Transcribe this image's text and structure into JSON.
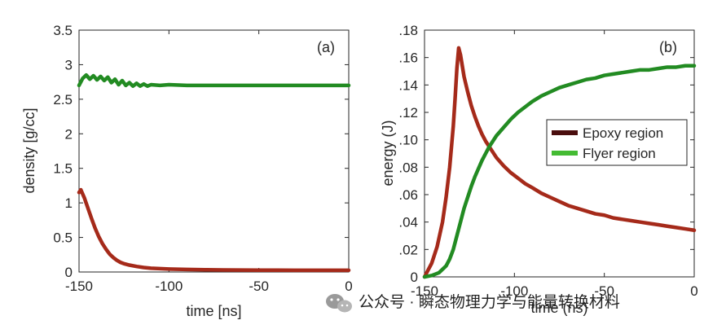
{
  "chart_data": [
    {
      "type": "line",
      "panel_label": "(a)",
      "xlabel": "time [ns]",
      "ylabel": "density [g/cc]",
      "xlim": [
        -150,
        0
      ],
      "ylim": [
        0,
        3.5
      ],
      "xticks": [
        -150,
        -100,
        -50,
        0
      ],
      "xtick_labels": [
        "-150",
        "-100",
        "-50",
        "0"
      ],
      "yticks": [
        0,
        0.5,
        1,
        1.5,
        2,
        2.5,
        3,
        3.5
      ],
      "ytick_labels": [
        "0",
        "0.5",
        "1",
        "1.5",
        "2",
        "2.5",
        "3",
        "3.5"
      ],
      "grid": false,
      "series": [
        {
          "color": "#228b22",
          "x": [
            -150,
            -148,
            -146,
            -144,
            -142,
            -140,
            -138,
            -136,
            -134,
            -132,
            -130,
            -128,
            -126,
            -124,
            -122,
            -120,
            -118,
            -116,
            -114,
            -112,
            -110,
            -105,
            -100,
            -90,
            -80,
            -70,
            -60,
            -50,
            -40,
            -30,
            -20,
            -10,
            0
          ],
          "y": [
            2.7,
            2.8,
            2.85,
            2.79,
            2.84,
            2.78,
            2.83,
            2.77,
            2.82,
            2.74,
            2.79,
            2.71,
            2.77,
            2.7,
            2.74,
            2.69,
            2.73,
            2.69,
            2.72,
            2.69,
            2.71,
            2.7,
            2.71,
            2.7,
            2.7,
            2.7,
            2.7,
            2.7,
            2.7,
            2.7,
            2.7,
            2.7,
            2.7
          ]
        },
        {
          "color": "#a52a1a",
          "x": [
            -150,
            -149,
            -147,
            -145,
            -143,
            -141,
            -139,
            -137,
            -135,
            -133,
            -131,
            -129,
            -127,
            -125,
            -122,
            -118,
            -114,
            -110,
            -105,
            -100,
            -95,
            -90,
            -80,
            -70,
            -60,
            -50,
            -40,
            -30,
            -20,
            -10,
            0
          ],
          "y": [
            1.15,
            1.19,
            1.07,
            0.92,
            0.77,
            0.63,
            0.51,
            0.41,
            0.33,
            0.26,
            0.21,
            0.17,
            0.14,
            0.12,
            0.1,
            0.08,
            0.065,
            0.055,
            0.048,
            0.043,
            0.04,
            0.037,
            0.033,
            0.03,
            0.028,
            0.027,
            0.026,
            0.025,
            0.025,
            0.025,
            0.025
          ]
        }
      ]
    },
    {
      "type": "line",
      "panel_label": "(b)",
      "xlabel": "time (ns)",
      "ylabel": "energy (J)",
      "xlim": [
        -150,
        0
      ],
      "ylim": [
        0,
        0.18
      ],
      "xticks": [
        -150,
        -100,
        -50,
        0
      ],
      "xtick_labels": [
        "-150",
        "-100",
        "-50",
        "0"
      ],
      "yticks": [
        0,
        0.02,
        0.04,
        0.06,
        0.08,
        0.1,
        0.12,
        0.14,
        0.16,
        0.18
      ],
      "ytick_labels": [
        "0",
        ".02",
        ".04",
        ".06",
        ".08",
        ".10",
        ".12",
        ".14",
        ".16",
        ".18"
      ],
      "grid": false,
      "legend": {
        "placement": "right",
        "entries": [
          {
            "label": "Epoxy region",
            "color": "#4a0e0e"
          },
          {
            "label": "Flyer region",
            "color": "#44bb33"
          }
        ]
      },
      "series": [
        {
          "name": "Epoxy region",
          "color": "#a52a1a",
          "x": [
            -150,
            -146,
            -143,
            -140,
            -138,
            -136,
            -134,
            -133,
            -132,
            -131,
            -130,
            -128,
            -126,
            -124,
            -122,
            -120,
            -118,
            -116,
            -114,
            -112,
            -110,
            -106,
            -102,
            -98,
            -94,
            -90,
            -85,
            -80,
            -75,
            -70,
            -65,
            -60,
            -55,
            -50,
            -45,
            -40,
            -35,
            -30,
            -25,
            -20,
            -15,
            -10,
            -5,
            0
          ],
          "y": [
            0,
            0.01,
            0.022,
            0.04,
            0.058,
            0.08,
            0.11,
            0.13,
            0.152,
            0.167,
            0.162,
            0.146,
            0.135,
            0.125,
            0.117,
            0.11,
            0.104,
            0.099,
            0.095,
            0.091,
            0.087,
            0.081,
            0.076,
            0.072,
            0.068,
            0.065,
            0.061,
            0.058,
            0.055,
            0.052,
            0.05,
            0.048,
            0.046,
            0.045,
            0.043,
            0.042,
            0.041,
            0.04,
            0.039,
            0.038,
            0.037,
            0.036,
            0.035,
            0.034
          ]
        },
        {
          "name": "Flyer region",
          "color": "#228b22",
          "x": [
            -150,
            -146,
            -142,
            -138,
            -136,
            -134,
            -132,
            -130,
            -128,
            -126,
            -124,
            -122,
            -120,
            -118,
            -116,
            -114,
            -112,
            -110,
            -106,
            -102,
            -98,
            -94,
            -90,
            -85,
            -80,
            -75,
            -70,
            -65,
            -60,
            -55,
            -50,
            -45,
            -40,
            -35,
            -30,
            -25,
            -20,
            -15,
            -10,
            -5,
            0
          ],
          "y": [
            0,
            0.001,
            0.003,
            0.008,
            0.013,
            0.02,
            0.03,
            0.04,
            0.05,
            0.058,
            0.066,
            0.073,
            0.079,
            0.085,
            0.09,
            0.095,
            0.099,
            0.103,
            0.109,
            0.115,
            0.12,
            0.124,
            0.128,
            0.132,
            0.135,
            0.138,
            0.14,
            0.142,
            0.144,
            0.145,
            0.147,
            0.148,
            0.149,
            0.15,
            0.151,
            0.151,
            0.152,
            0.153,
            0.153,
            0.154,
            0.154
          ]
        }
      ]
    }
  ],
  "watermark": {
    "icon": "wechat-icon",
    "text": "公众号 · 瞬态物理力学与能量转换材料"
  }
}
